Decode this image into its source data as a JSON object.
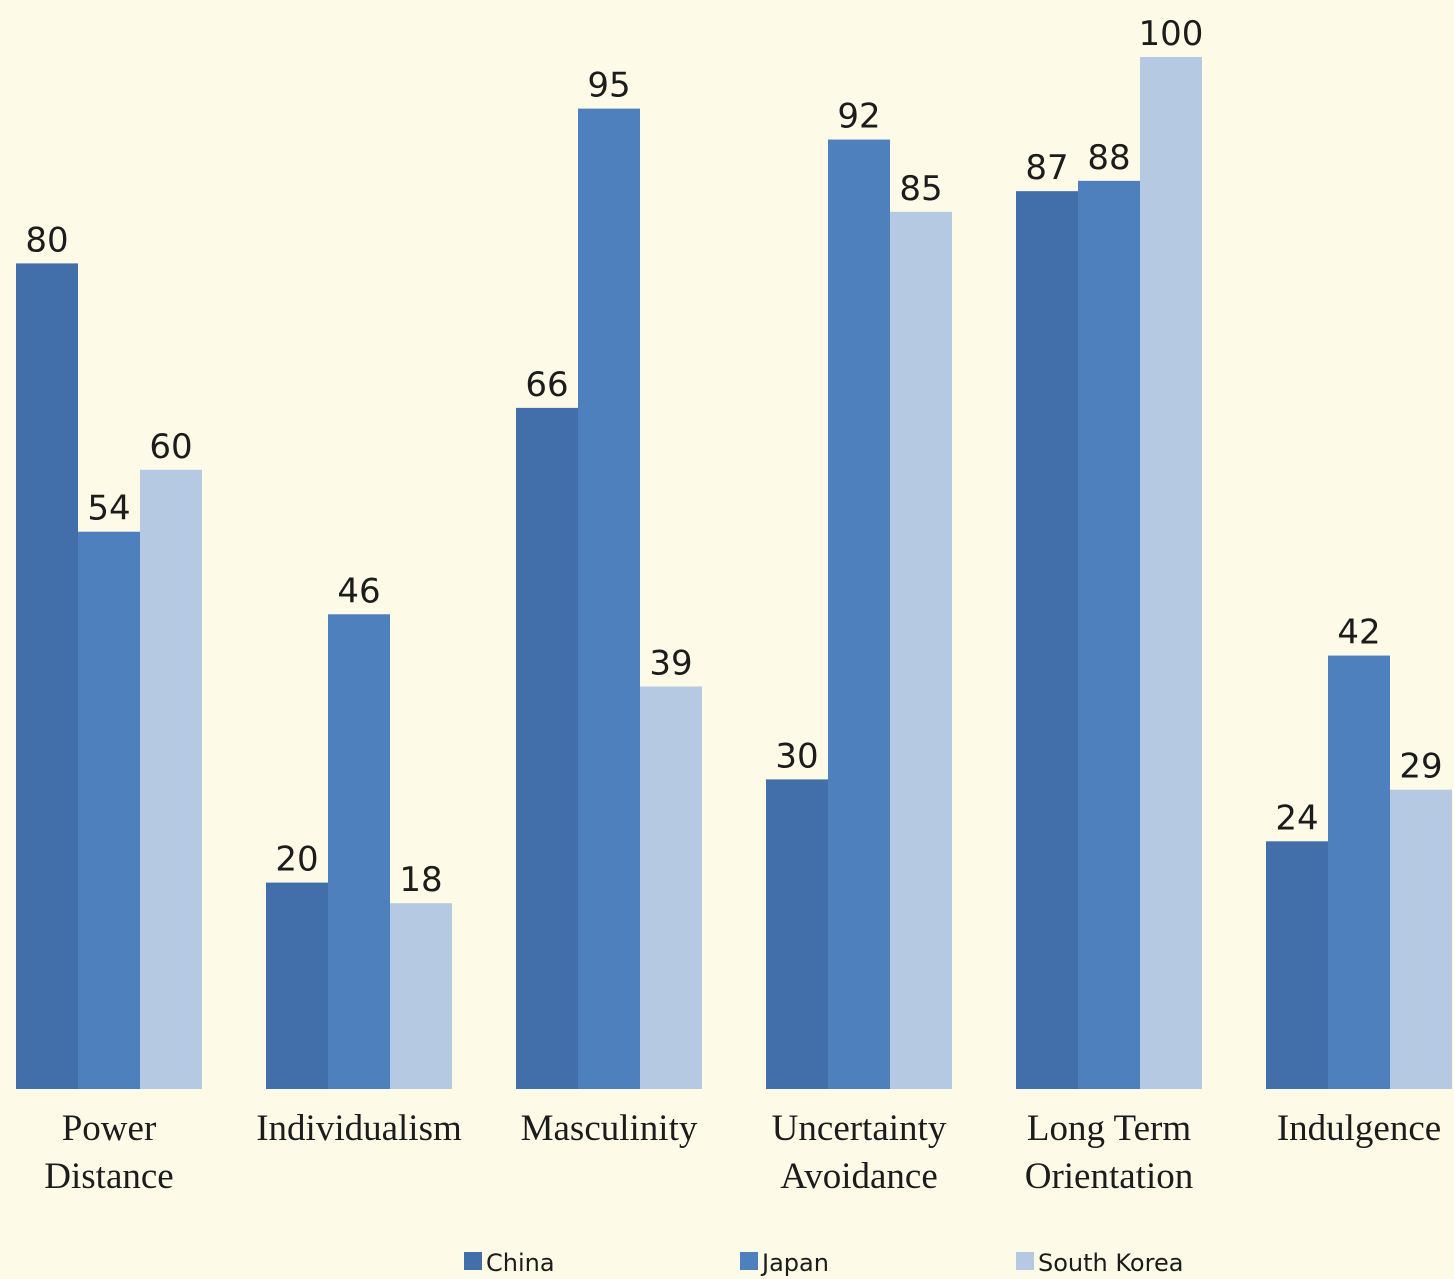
{
  "chart_data": {
    "type": "bar",
    "title": "",
    "xlabel": "",
    "ylabel": "",
    "ylim": [
      0,
      100
    ],
    "grid": false,
    "legend_position": "bottom",
    "categories": [
      [
        "Power",
        "Distance"
      ],
      [
        "Individualism"
      ],
      [
        "Masculinity"
      ],
      [
        "Uncertainty",
        "Avoidance"
      ],
      [
        "Long Term",
        "Orientation"
      ],
      [
        "Indulgence"
      ]
    ],
    "series": [
      {
        "name": "China",
        "color": "#426fa9",
        "values": [
          80,
          20,
          66,
          30,
          87,
          24
        ]
      },
      {
        "name": "Japan",
        "color": "#4e80bd",
        "values": [
          54,
          46,
          95,
          92,
          88,
          42
        ]
      },
      {
        "name": "South Korea",
        "color": "#b5c9e2",
        "values": [
          60,
          18,
          39,
          85,
          100,
          29
        ]
      }
    ]
  }
}
